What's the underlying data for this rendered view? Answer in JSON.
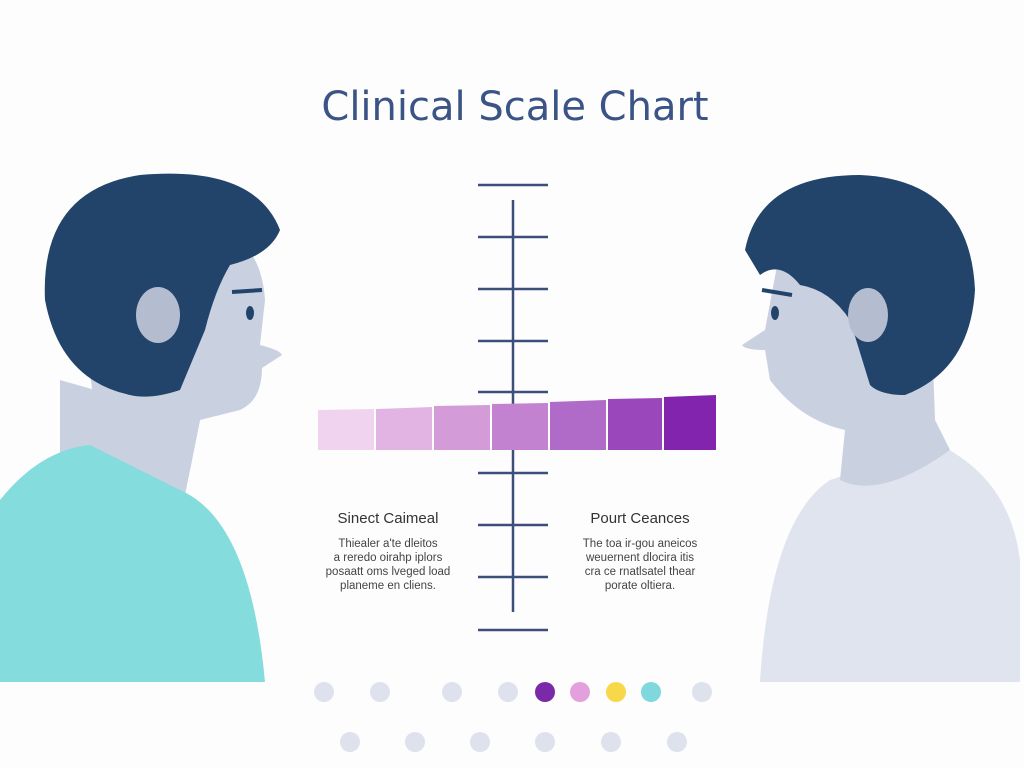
{
  "header": {
    "title": "Clinical Scale Chart"
  },
  "left_panel": {
    "heading": "Sinect Caimeal",
    "body": [
      "Thiealer a'te dleitos",
      "a reredo oirahp iplors",
      "posaatt oms lveged load",
      "planeme en cliens."
    ]
  },
  "right_panel": {
    "heading": "Pourt Ceances",
    "body": [
      "The toa ir-gou aneicos",
      "weuernent dlocira itis",
      "cra ce rnatlsatel thear",
      "porate oltiera."
    ]
  }
}
